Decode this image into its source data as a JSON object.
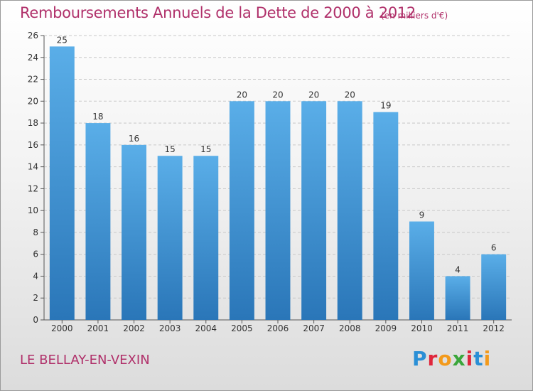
{
  "header": {
    "title": "Remboursements Annuels de la Dette de 2000 à 2012",
    "subtitle": "(en milliers d'€)"
  },
  "footer": {
    "commune": "LE BELLAY-EN-VEXIN",
    "logo": "Proxiti",
    "logo_colors": [
      "#2a8fd6",
      "#e0263c",
      "#f39a1b",
      "#3aa63a",
      "#e0263c",
      "#2a8fd6",
      "#f39a1b"
    ]
  },
  "chart_data": {
    "type": "bar",
    "title": "Remboursements Annuels de la Dette de 2000 à 2012",
    "subtitle": "(en milliers d'€)",
    "xlabel": "",
    "ylabel": "",
    "categories": [
      "2000",
      "2001",
      "2002",
      "2003",
      "2004",
      "2005",
      "2006",
      "2007",
      "2008",
      "2009",
      "2010",
      "2011",
      "2012"
    ],
    "values": [
      25,
      18,
      16,
      15,
      15,
      20,
      20,
      20,
      20,
      19,
      9,
      4,
      6
    ],
    "ylim": [
      0,
      26
    ],
    "yticks": [
      0,
      2,
      4,
      6,
      8,
      10,
      12,
      14,
      16,
      18,
      20,
      22,
      24,
      26
    ],
    "grid": true,
    "bar_color_top": "#5aaee8",
    "bar_color_bottom": "#2a76b8"
  }
}
